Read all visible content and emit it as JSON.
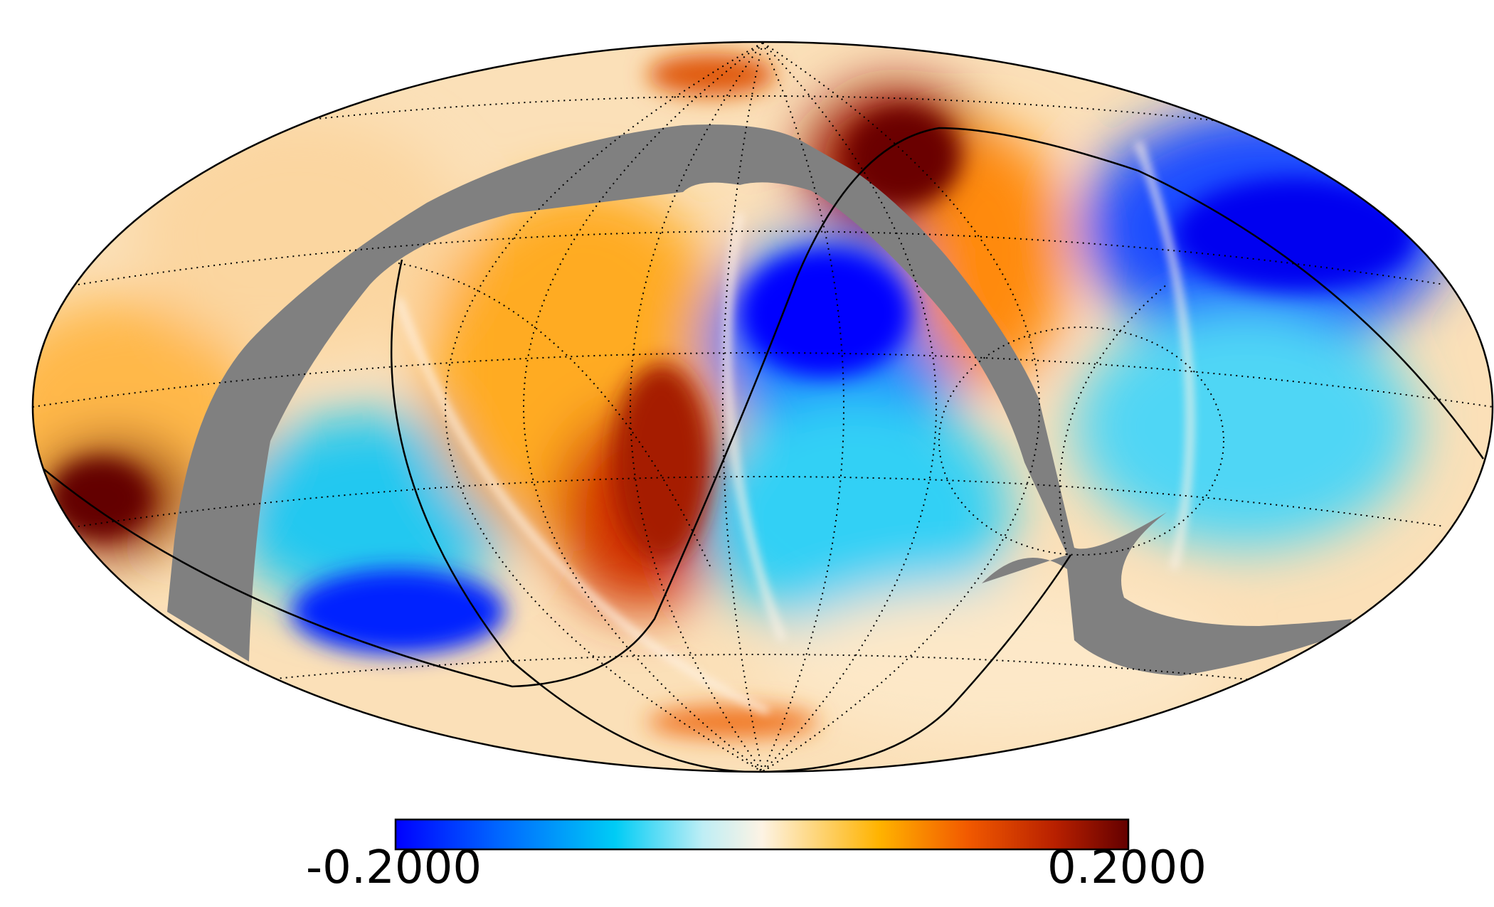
{
  "map": {
    "projection": "mollweide",
    "colormap": [
      "#0000ff",
      "#0066ff",
      "#00ccf5",
      "#bfeef5",
      "#fdf3e4",
      "#ffb300",
      "#f25a00",
      "#b82000",
      "#640000"
    ],
    "mask_color": "#808080",
    "graticule": "dotted",
    "colors": {
      "background": "#ffffff",
      "border": "#000000"
    }
  },
  "colorbar": {
    "min_label": "-0.2000",
    "max_label": "0.2000"
  }
}
